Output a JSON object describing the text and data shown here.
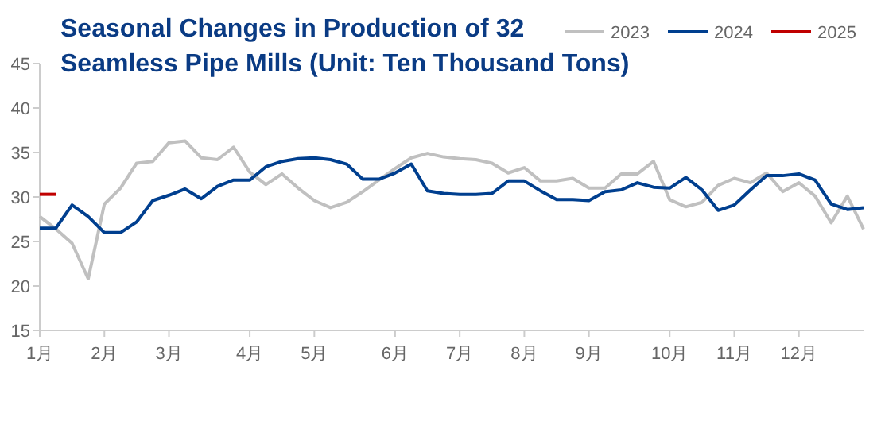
{
  "chart_data": {
    "type": "line",
    "title": "Seasonal Changes in Production of 32 Seamless Pipe Mills (Unit: Ten Thousand Tons)",
    "categories": [
      "1月",
      null,
      null,
      null,
      "2月",
      null,
      null,
      null,
      "3月",
      null,
      null,
      null,
      null,
      "4月",
      null,
      null,
      null,
      "5月",
      null,
      null,
      null,
      null,
      "6月",
      null,
      null,
      null,
      "7月",
      null,
      null,
      null,
      "8月",
      null,
      null,
      null,
      "9月",
      null,
      null,
      null,
      null,
      "10月",
      null,
      null,
      null,
      "11月",
      null,
      null,
      null,
      "12月",
      null,
      null,
      null,
      null
    ],
    "series": [
      {
        "name": "2023",
        "color": "#c0c0c0",
        "values": [
          27.8,
          26.4,
          24.8,
          20.8,
          29.2,
          31,
          33.8,
          34,
          36.1,
          36.3,
          34.4,
          34.2,
          35.6,
          32.8,
          31.4,
          32.6,
          31,
          29.6,
          28.8,
          29.4,
          30.6,
          31.9,
          33.2,
          34.4,
          34.9,
          34.5,
          34.3,
          34.2,
          33.8,
          32.7,
          33.3,
          31.8,
          31.8,
          32.1,
          31,
          31,
          32.6,
          32.6,
          34,
          29.7,
          28.9,
          29.4,
          31.3,
          32.1,
          31.6,
          32.7,
          30.6,
          31.6,
          30.1,
          27.1,
          30.1,
          26.4
        ]
      },
      {
        "name": "2024",
        "color": "#003f8f",
        "values": [
          26.5,
          26.5,
          29.1,
          27.8,
          26,
          26,
          27.2,
          29.6,
          30.2,
          30.9,
          29.8,
          31.2,
          31.9,
          31.9,
          33.4,
          34,
          34.3,
          34.4,
          34.2,
          33.7,
          32,
          32,
          32.7,
          33.7,
          30.7,
          30.4,
          30.3,
          30.3,
          30.4,
          31.8,
          31.8,
          30.7,
          29.7,
          29.7,
          29.6,
          30.6,
          30.8,
          31.6,
          31.1,
          31,
          32.2,
          30.8,
          28.5,
          29.1,
          30.8,
          32.4,
          32.4,
          32.6,
          31.9,
          29.2,
          28.6,
          28.8
        ]
      },
      {
        "name": "2025",
        "color": "#c00000",
        "values": [
          30.3,
          30.3,
          null,
          null,
          null,
          null,
          null,
          null,
          null,
          null,
          null,
          null,
          null,
          null,
          null,
          null,
          null,
          null,
          null,
          null,
          null,
          null,
          null,
          null,
          null,
          null,
          null,
          null,
          null,
          null,
          null,
          null,
          null,
          null,
          null,
          null,
          null,
          null,
          null,
          null,
          null,
          null,
          null,
          null,
          null,
          null,
          null,
          null,
          null,
          null,
          null,
          null
        ]
      }
    ],
    "ylim": [
      15,
      45
    ],
    "yticks": [
      15,
      20,
      25,
      30,
      35,
      40,
      45
    ],
    "grid": false,
    "legend": "top right",
    "marker": "none",
    "line_style": "solid"
  }
}
